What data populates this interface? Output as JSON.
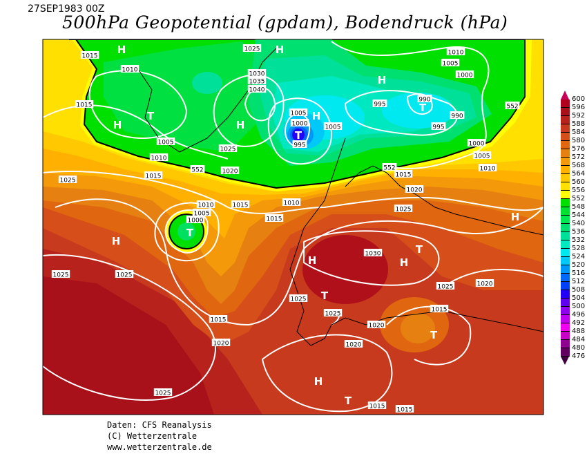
{
  "header": {
    "date": "27SEP1983 00Z",
    "title": "500hPa Geopotential (gpdam), Bodendruck (hPa)"
  },
  "colorbar": {
    "labels": [
      "600",
      "596",
      "592",
      "588",
      "584",
      "580",
      "576",
      "572",
      "568",
      "564",
      "560",
      "556",
      "552",
      "548",
      "544",
      "540",
      "536",
      "532",
      "528",
      "524",
      "520",
      "516",
      "512",
      "508",
      "504",
      "500",
      "496",
      "492",
      "488",
      "484",
      "480",
      "476"
    ],
    "colors": [
      "#c8005a",
      "#b0001e",
      "#a8101a",
      "#b8221c",
      "#c83a1e",
      "#d64e1a",
      "#e06610",
      "#e68010",
      "#f49a0a",
      "#ffb000",
      "#ffc800",
      "#ffe000",
      "#ffff00",
      "#00e000",
      "#00e030",
      "#00e850",
      "#00e070",
      "#00e098",
      "#00e8c0",
      "#00e8f0",
      "#00c8f8",
      "#0098f8",
      "#0068f8",
      "#0040f8",
      "#2000f8",
      "#6000f0",
      "#9000f0",
      "#c000f0",
      "#f000f0",
      "#c800c8",
      "#900090",
      "#600060",
      "#400040"
    ]
  },
  "map": {
    "pressure_labels": [
      "1015",
      "1010",
      "1015",
      "1005",
      "1010",
      "1015",
      "1025",
      "552",
      "1020",
      "1025",
      "1030",
      "1035",
      "1040",
      "1025",
      "1005",
      "1000",
      "995",
      "1005",
      "995",
      "990",
      "990",
      "995",
      "1010",
      "1005",
      "1000",
      "552",
      "1000",
      "1005",
      "1010",
      "552",
      "1015",
      "1020",
      "1025",
      "1010",
      "1005",
      "1000",
      "1015",
      "1010",
      "1015",
      "1025",
      "1025",
      "1030",
      "1025",
      "1020",
      "1025",
      "1025",
      "1015",
      "1020",
      "1020",
      "1015",
      "1020",
      "1015",
      "1015",
      "1025"
    ],
    "centers": [
      "H",
      "H",
      "T",
      "H",
      "H",
      "T",
      "H",
      "H",
      "T",
      "H",
      "T",
      "H",
      "H",
      "H",
      "T",
      "T",
      "T",
      "H",
      "T"
    ]
  },
  "footer": {
    "source": "Daten: CFS Reanalysis",
    "copyright": "(C) Wetterzentrale",
    "url": "www.wetterzentrale.de"
  }
}
